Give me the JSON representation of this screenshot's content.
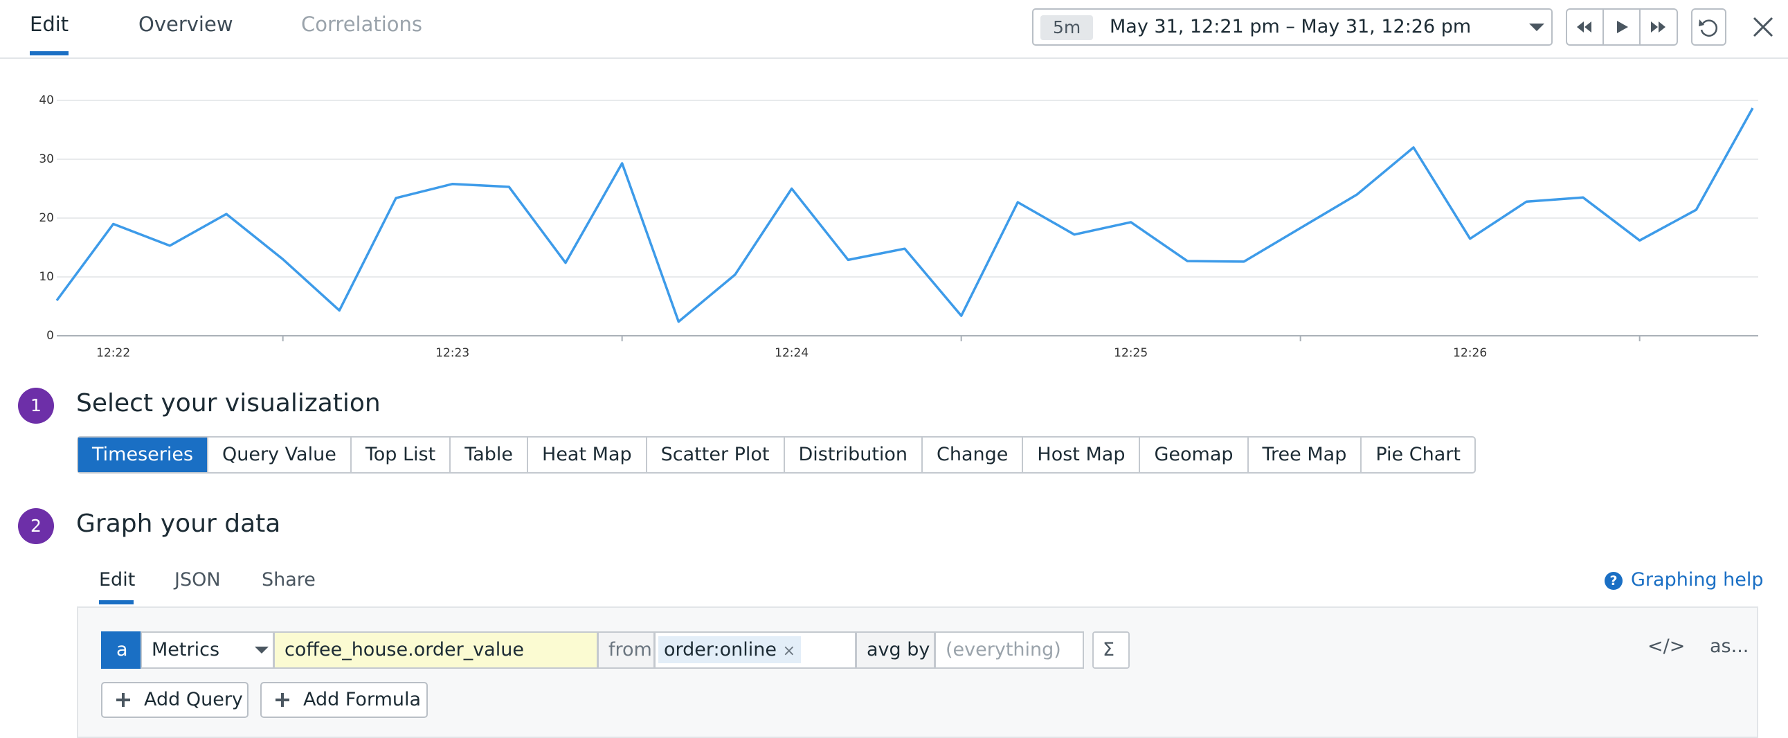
{
  "tabs": [
    "Edit",
    "Overview",
    "Correlations"
  ],
  "time_picker": {
    "span": "5m",
    "range": "May 31, 12:21 pm – May 31, 12:26 pm"
  },
  "chart_data": {
    "type": "line",
    "categories": [
      null,
      "12:22",
      null,
      null,
      null,
      null,
      null,
      "12:23",
      null,
      null,
      null,
      null,
      null,
      "12:24",
      null,
      null,
      null,
      null,
      null,
      "12:25",
      null,
      null,
      null,
      null,
      null,
      "12:26",
      null,
      null,
      null,
      null,
      null
    ],
    "values": [
      6,
      19,
      15.3,
      20.7,
      13,
      4.3,
      23.4,
      25.8,
      25.3,
      12.4,
      29.3,
      2.4,
      10.4,
      25,
      12.9,
      14.8,
      3.4,
      22.7,
      17.2,
      19.3,
      12.7,
      12.6,
      18.3,
      24,
      32,
      16.5,
      22.8,
      23.5,
      16.2,
      21.4,
      38.7
    ],
    "color": "#3d9be9",
    "ylim": [
      0,
      40
    ],
    "yticks": [
      0,
      10,
      20,
      30,
      40
    ],
    "grid": true
  },
  "steps": [
    {
      "number": 1,
      "title": "Select your visualization"
    },
    {
      "number": 2,
      "title": "Graph your data"
    }
  ],
  "visualizations": [
    "Timeseries",
    "Query Value",
    "Top List",
    "Table",
    "Heat Map",
    "Scatter Plot",
    "Distribution",
    "Change",
    "Host Map",
    "Geomap",
    "Tree Map",
    "Pie Chart"
  ],
  "editor_tabs": [
    "Edit",
    "JSON",
    "Share"
  ],
  "help_icon": "?",
  "graphing_help": "Graphing help",
  "query": {
    "name": "a",
    "source": "Metrics",
    "metric": "coffee_house.order_value",
    "from_label": "from",
    "tag": "order:online",
    "tag_remove": "×",
    "aggregation_label": "avg by",
    "group_placeholder": "(everything)",
    "formula_button": "Σ",
    "code_toggle": "</>",
    "alias": "as..."
  },
  "buttons": [
    "Add Query",
    "Add Formula"
  ]
}
